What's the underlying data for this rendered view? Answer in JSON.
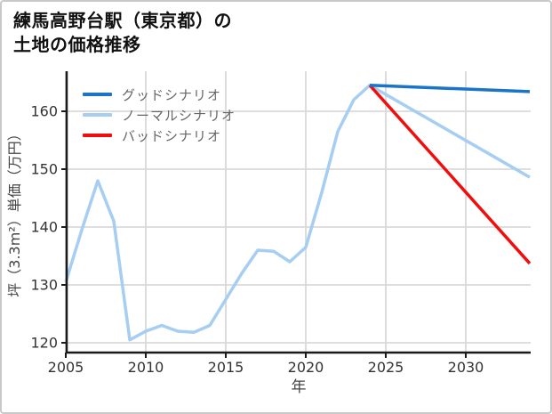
{
  "title": {
    "line1": "練馬高野台駅（東京都）の",
    "line2": "土地の価格推移"
  },
  "legend": [
    {
      "label": "グッドシナリオ",
      "color": "#1a74c8"
    },
    {
      "label": "ノーマルシナリオ",
      "color": "#a6cdf2"
    },
    {
      "label": "バッドシナリオ",
      "color": "#f20d0d"
    }
  ],
  "colors": {
    "grid": "#d9d9d9",
    "spine": "#1a1a1a",
    "tick_label": "#333333",
    "axis_title": "#444444",
    "good": "#1a74c8",
    "normal": "#a6cdf2",
    "bad": "#f20d0d"
  },
  "chart_data": {
    "type": "line",
    "title": "練馬高野台駅（東京都）の土地の価格推移",
    "xlabel": "年",
    "ylabel": "坪（3.3m²）単価（万円）",
    "xlim": [
      2005,
      2034
    ],
    "ylim": [
      118,
      167
    ],
    "x_ticks": [
      2005,
      2010,
      2015,
      2020,
      2025,
      2030
    ],
    "y_ticks": [
      120,
      130,
      140,
      150,
      160
    ],
    "grid": true,
    "legend_position": "upper-left",
    "series": [
      {
        "name": "ノーマルシナリオ",
        "color": "#a6cdf2",
        "x": [
          2005,
          2006,
          2007,
          2008,
          2009,
          2010,
          2011,
          2012,
          2013,
          2014,
          2015,
          2016,
          2017,
          2018,
          2019,
          2020,
          2021,
          2022,
          2023,
          2024,
          2034
        ],
        "y": [
          130.5,
          139.5,
          148,
          141,
          120.5,
          122,
          123,
          122,
          121.8,
          123,
          127.5,
          132,
          136,
          135.8,
          134,
          136.5,
          146,
          156.5,
          162,
          164.5,
          148.6
        ]
      },
      {
        "name": "バッドシナリオ",
        "color": "#f20d0d",
        "x": [
          2024,
          2034
        ],
        "y": [
          164.5,
          133.7
        ]
      },
      {
        "name": "グッドシナリオ",
        "color": "#1a74c8",
        "x": [
          2024,
          2034
        ],
        "y": [
          164.5,
          163.4
        ]
      }
    ]
  }
}
